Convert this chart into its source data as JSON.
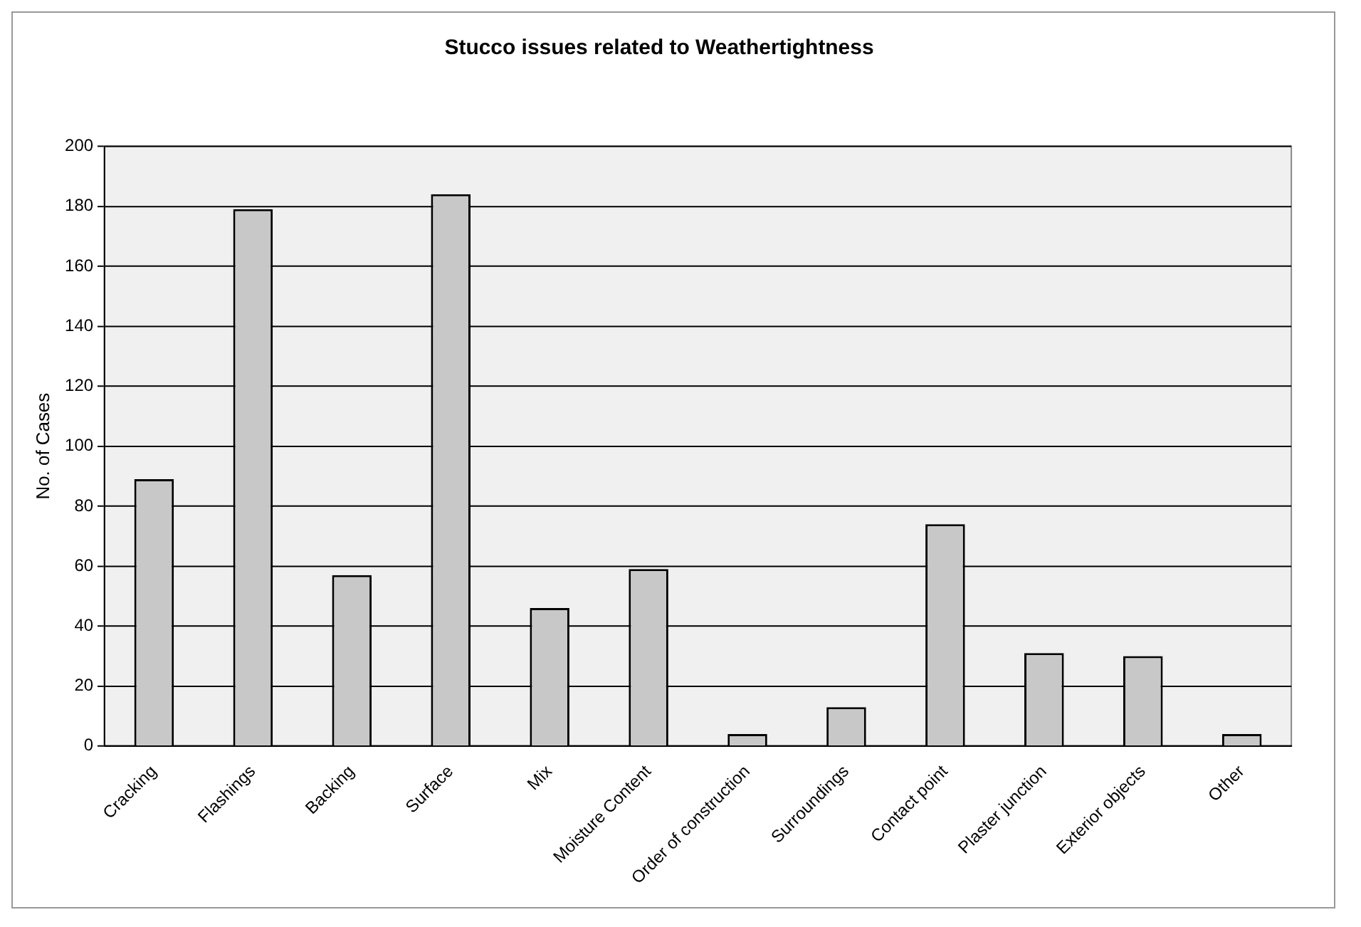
{
  "chart_data": {
    "type": "bar",
    "title": "Stucco issues related to Weathertightness",
    "ylabel": "No. of Cases",
    "categories": [
      "Cracking",
      "Flashings",
      "Backing",
      "Surface",
      "Mix",
      "Moisture Content",
      "Order of construction",
      "Surroundings",
      "Contact point",
      "Plaster junction",
      "Exterior objects",
      "Other"
    ],
    "values": [
      89,
      179,
      57,
      184,
      46,
      59,
      4,
      13,
      74,
      31,
      30,
      4
    ],
    "color": "#c8c8c8",
    "ylim": [
      0,
      200
    ],
    "yticks": [
      0,
      20,
      40,
      60,
      80,
      100,
      120,
      140,
      160,
      180,
      200
    ],
    "grid": "y",
    "legend": false
  }
}
